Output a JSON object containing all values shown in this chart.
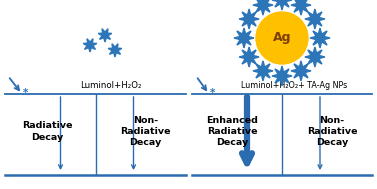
{
  "bg_color": "#ffffff",
  "line_color": "#2B6CB0",
  "arrow_color": "#2B6CB0",
  "text_color": "#000000",
  "star_color": "#2B75B8",
  "ag_circle_color": "#FFC000",
  "ag_text_color": "#7B3F00",
  "ag_text": "Ag",
  "label_left": "Luminol+H₂O₂",
  "label_right": "Luminol+H₂O₂+ TA-Ag NPs",
  "decay_left_1": "Radiative\nDecay",
  "decay_left_2": "Non-\nRadiative\nDecay",
  "decay_right_1": "Enhanced\nRadiative\nDecay",
  "decay_right_2": "Non-\nRadiative\nDecay",
  "figsize": [
    3.77,
    1.89
  ],
  "dpi": 100
}
